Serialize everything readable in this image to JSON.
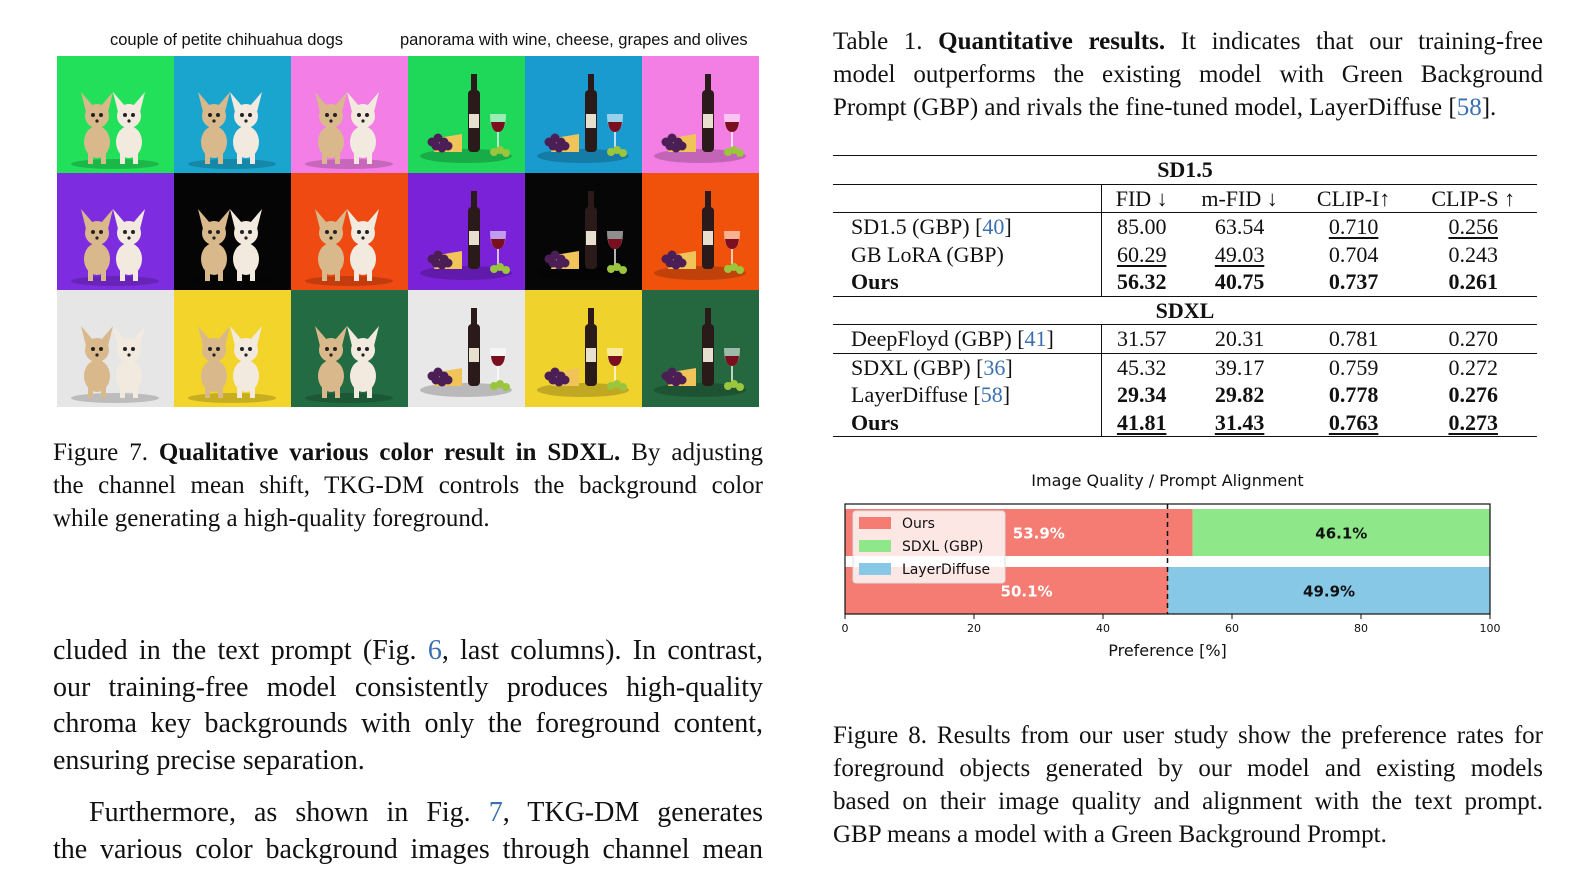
{
  "figure7": {
    "labels": [
      "couple of petite chihuahua dogs",
      "panorama with wine, cheese, grapes and olives"
    ],
    "row_colors": [
      [
        "#22e05a",
        "#1aa5cf",
        "#f27ee6",
        "#1fd85a",
        "#1a9bd0",
        "#f47fe4"
      ],
      [
        "#7e2ce0",
        "#050505",
        "#ee4a12",
        "#7a22d8",
        "#060606",
        "#f0520c"
      ],
      [
        "#e6e6e6",
        "#f3d42a",
        "#236b43",
        "#e8e8e8",
        "#f0d22c",
        "#25683f"
      ]
    ],
    "caption_label": "Figure 7.",
    "caption_bold": "Qualitative various color result in SDXL.",
    "caption_lines": [
      "By adjusting",
      "the channel mean shift, TKG-DM controls the background color",
      "while generating a high-quality foreground."
    ]
  },
  "body": {
    "p1_l1_a": "cluded in the text prompt (Fig. ",
    "p1_l1_ref": "6",
    "p1_l1_b": ", last columns). In contrast,",
    "p1_l2": "our training-free model consistently produces high-quality",
    "p1_l3": "chroma key backgrounds with only the foreground content,",
    "p1_l4": "ensuring precise separation.",
    "p2_l1_a": "Furthermore, as shown in Fig. ",
    "p2_l1_ref": "7",
    "p2_l1_b": ", TKG-DM generates",
    "p2_l2": "the various color background images through channel mean"
  },
  "table1": {
    "caption_label": "Table 1.",
    "caption_bold": "Quantitative results.",
    "caption_l1": "It indicates that our training-free",
    "caption_l2": "model outperforms the existing model with Green Background",
    "caption_l3_a": "Prompt (GBP) and rivals the fine-tuned model, LayerDiffuse [",
    "caption_l3_ref": "58",
    "caption_l3_b": "].",
    "columns": [
      "FID ↓",
      "m-FID ↓",
      "CLIP-I↑",
      "CLIP-S ↑"
    ],
    "sections": [
      {
        "name": "SD1.5",
        "rows": [
          {
            "method": "SD1.5 (GBP) [",
            "ref": "40",
            "close": "]",
            "values": [
              "85.00",
              "63.54",
              "0.710",
              "0.256"
            ],
            "bold": false
          },
          {
            "method": "GB LoRA (GBP)",
            "ref": "",
            "close": "",
            "values": [
              "60.29",
              "49.03",
              "0.704",
              "0.243"
            ],
            "bold": false
          },
          {
            "method": "Ours",
            "ref": "",
            "close": "",
            "values": [
              "56.32",
              "40.75",
              "0.737",
              "0.261"
            ],
            "bold": true
          }
        ]
      },
      {
        "name": "SDXL",
        "rows": [
          {
            "method": "DeepFloyd (GBP) [",
            "ref": "41",
            "close": "]",
            "values": [
              "31.57",
              "20.31",
              "0.781",
              "0.270"
            ],
            "bold": false
          },
          {
            "method": "SDXL (GBP) [",
            "ref": "36",
            "close": "]",
            "values": [
              "45.32",
              "39.17",
              "0.759",
              "0.272"
            ],
            "bold": false
          },
          {
            "method": "LayerDiffuse [",
            "ref": "58",
            "close": "]",
            "values": [
              "29.34",
              "29.82",
              "0.778",
              "0.276"
            ],
            "bold": true
          },
          {
            "method": "Ours",
            "ref": "",
            "close": "",
            "values": [
              "41.81",
              "31.43",
              "0.763",
              "0.273"
            ],
            "bold": true
          }
        ]
      }
    ]
  },
  "chart_data": {
    "type": "bar",
    "orientation": "horizontal-stacked",
    "title": "Image Quality / Prompt Alignment",
    "xlabel": "Preference [%]",
    "xlim": [
      0,
      100
    ],
    "xticks": [
      0,
      20,
      40,
      60,
      80,
      100
    ],
    "reference_line": 50,
    "legend": {
      "position": "top-left",
      "entries": [
        "Ours",
        "SDXL (GBP)",
        "LayerDiffuse"
      ]
    },
    "colors": {
      "Ours": "#f47c72",
      "SDXL (GBP)": "#8ee88a",
      "LayerDiffuse": "#86c8e6"
    },
    "bars": [
      {
        "segments": [
          {
            "series": "Ours",
            "value": 53.9,
            "label": "53.9%"
          },
          {
            "series": "SDXL (GBP)",
            "value": 46.1,
            "label": "46.1%"
          }
        ]
      },
      {
        "segments": [
          {
            "series": "Ours",
            "value": 50.1,
            "label": "50.1%"
          },
          {
            "series": "LayerDiffuse",
            "value": 49.9,
            "label": "49.9%"
          }
        ]
      }
    ]
  },
  "figure8": {
    "caption_l1": "Figure 8. Results from our user study show the preference rates for",
    "caption_l2": "foreground objects generated by our model and existing models",
    "caption_l3": "based on their image quality and alignment with the text prompt.",
    "caption_l4": "GBP means a model with a Green Background Prompt."
  }
}
